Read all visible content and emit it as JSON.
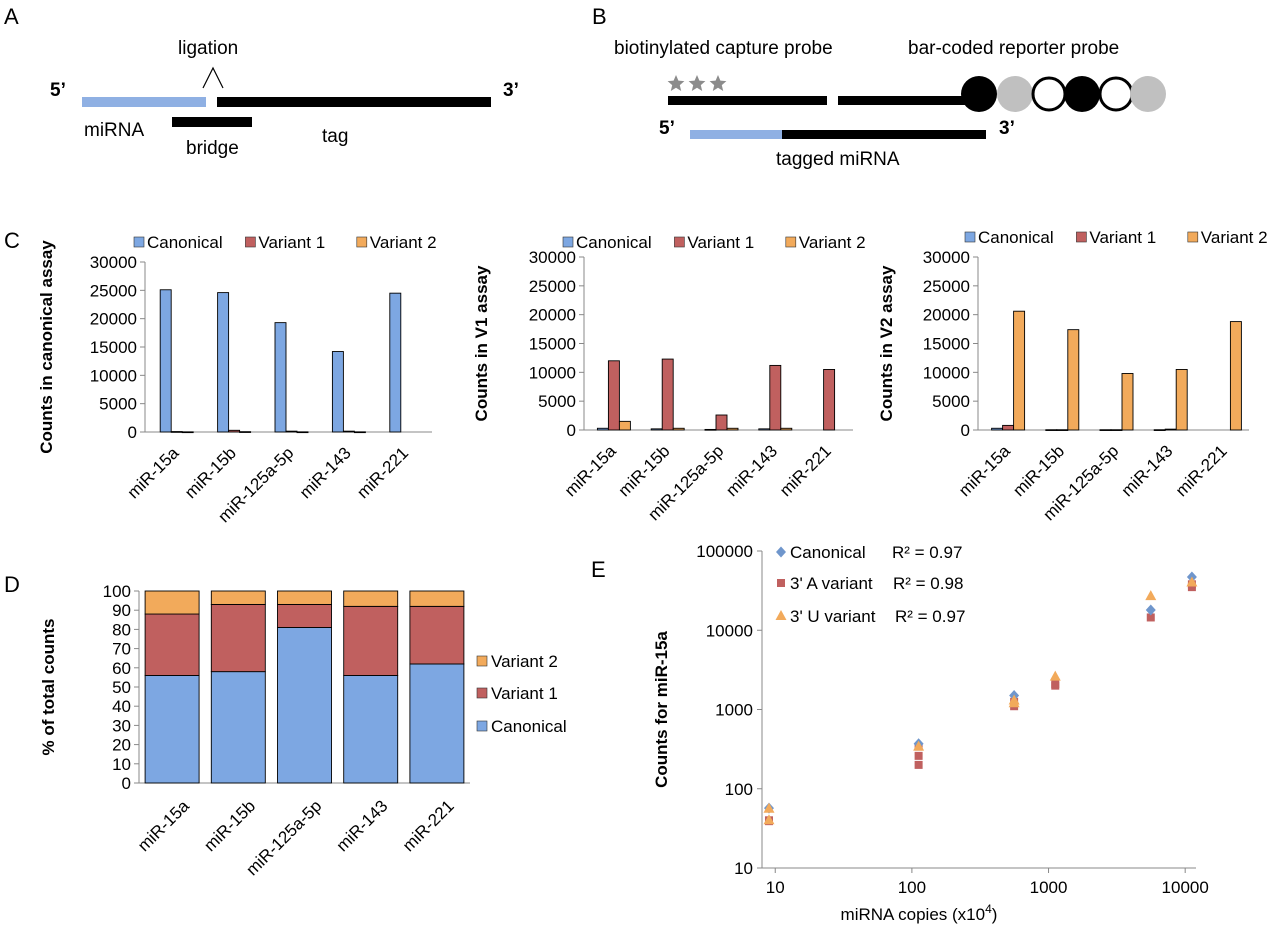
{
  "panels": {
    "a": {
      "letter": "A",
      "ligation": "ligation",
      "five_prime": "5’",
      "three_prime": "3’",
      "mirna": "miRNA",
      "bridge": "bridge",
      "tag": "tag",
      "colors": {
        "mirna": "#8fb0e3",
        "black": "#000000"
      }
    },
    "b": {
      "letter": "B",
      "capture_probe": "biotinylated capture probe",
      "reporter_probe": "bar-coded reporter probe",
      "five_prime": "5’",
      "three_prime": "3’",
      "tagged_mirna": "tagged miRNA",
      "stars": [
        "star-icon",
        "star-icon",
        "star-icon"
      ],
      "colors": {
        "star": "#8c8c8c",
        "grey_bead": "#c0c0c0",
        "mirna": "#8fb0e3"
      }
    },
    "c_letter": "C",
    "d_letter": "D",
    "e_letter": "E"
  },
  "series_colors": {
    "Canonical": "#7da7e2",
    "Variant 1": "#c0605f",
    "Variant 2": "#f2aa5b",
    "3' A variant": "#c0605f",
    "3' U variant": "#f2aa5b",
    "Canonical_scatter": "#6f96cc"
  },
  "chart_data": [
    {
      "id": "c1",
      "type": "bar",
      "title": "",
      "ylabel": "Counts in canonical assay",
      "ylim": [
        0,
        30000
      ],
      "yticks": [
        "0",
        "5000",
        "10000",
        "15000",
        "20000",
        "25000",
        "30000"
      ],
      "categories": [
        "miR-15a",
        "miR-15b",
        "miR-125a-5p",
        "miR-143",
        "miR-221"
      ],
      "legend": [
        "Canonical",
        "Variant 1",
        "Variant 2"
      ],
      "series": [
        {
          "name": "Canonical",
          "values": [
            25100,
            24600,
            19300,
            14200,
            24500
          ]
        },
        {
          "name": "Variant 1",
          "values": [
            80,
            300,
            150,
            150,
            0
          ]
        },
        {
          "name": "Variant 2",
          "values": [
            30,
            60,
            30,
            30,
            0
          ]
        }
      ]
    },
    {
      "id": "c2",
      "type": "bar",
      "ylabel": "Counts in V1 assay",
      "ylim": [
        0,
        30000
      ],
      "yticks": [
        "0",
        "5000",
        "10000",
        "15000",
        "20000",
        "25000",
        "30000"
      ],
      "categories": [
        "miR-15a",
        "miR-15b",
        "miR-125a-5p",
        "miR-143",
        "miR-221"
      ],
      "legend": [
        "Canonical",
        "Variant 1",
        "Variant 2"
      ],
      "series": [
        {
          "name": "Canonical",
          "values": [
            300,
            200,
            100,
            200,
            0
          ]
        },
        {
          "name": "Variant 1",
          "values": [
            12000,
            12300,
            2600,
            11200,
            10500
          ]
        },
        {
          "name": "Variant 2",
          "values": [
            1500,
            300,
            300,
            300,
            0
          ]
        }
      ]
    },
    {
      "id": "c3",
      "type": "bar",
      "ylabel": "Counts in V2 assay",
      "ylim": [
        0,
        30000
      ],
      "yticks": [
        "0",
        "5000",
        "10000",
        "15000",
        "20000",
        "25000",
        "30000"
      ],
      "categories": [
        "miR-15a",
        "miR-15b",
        "miR-125a-5p",
        "miR-143",
        "miR-221"
      ],
      "legend": [
        "Canonical",
        "Variant 1",
        "Variant 2"
      ],
      "series": [
        {
          "name": "Canonical",
          "values": [
            300,
            50,
            50,
            50,
            0
          ]
        },
        {
          "name": "Variant 1",
          "values": [
            800,
            50,
            50,
            150,
            0
          ]
        },
        {
          "name": "Variant 2",
          "values": [
            20600,
            17400,
            9800,
            10500,
            18800
          ]
        }
      ]
    },
    {
      "id": "d",
      "type": "bar",
      "stacked": true,
      "ylabel": "% of total counts",
      "ylim": [
        0,
        100
      ],
      "yticks": [
        "0",
        "10",
        "20",
        "30",
        "40",
        "50",
        "60",
        "70",
        "80",
        "90",
        "100"
      ],
      "categories": [
        "miR-15a",
        "miR-15b",
        "miR-125a-5p",
        "miR-143",
        "miR-221"
      ],
      "legend": [
        "Variant 2",
        "Variant 1",
        "Canonical"
      ],
      "series": [
        {
          "name": "Canonical",
          "values": [
            56,
            58,
            81,
            56,
            62
          ]
        },
        {
          "name": "Variant 1",
          "values": [
            32,
            35,
            12,
            36,
            30
          ]
        },
        {
          "name": "Variant 2",
          "values": [
            12,
            7,
            7,
            8,
            8
          ]
        }
      ]
    },
    {
      "id": "e",
      "type": "scatter",
      "xscale": "log",
      "yscale": "log",
      "xlabel": "miRNA copies (x10",
      "xlabel_sup": "4",
      "xlabel_end": ")",
      "ylabel": "Counts for miR-15a",
      "xlim": [
        8,
        12000
      ],
      "ylim": [
        10,
        100000
      ],
      "xticks": [
        "10",
        "100",
        "1000",
        "10000"
      ],
      "yticks": [
        "10",
        "100",
        "1000",
        "10000",
        "100000"
      ],
      "series": [
        {
          "name": "Canonical",
          "r2": "R² = 0.97",
          "marker": "diamond",
          "x": [
            9,
            112,
            560,
            5600,
            11200
          ],
          "y": [
            57,
            370,
            1500,
            18000,
            47000
          ]
        },
        {
          "name": "3' A variant",
          "r2": "R² = 0.98",
          "marker": "square",
          "x": [
            9,
            9,
            112,
            112,
            112,
            560,
            560,
            1120,
            1120,
            5600,
            11200,
            11200
          ],
          "y": [
            40,
            39,
            200,
            260,
            340,
            1100,
            1250,
            2000,
            2100,
            14500,
            35000,
            38000
          ]
        },
        {
          "name": "3' U variant",
          "r2": "R² = 0.97",
          "marker": "triangle",
          "x": [
            9,
            9,
            112,
            560,
            560,
            1120,
            5600,
            11200
          ],
          "y": [
            56,
            40,
            340,
            1300,
            1200,
            2600,
            27000,
            40000
          ]
        }
      ]
    }
  ]
}
